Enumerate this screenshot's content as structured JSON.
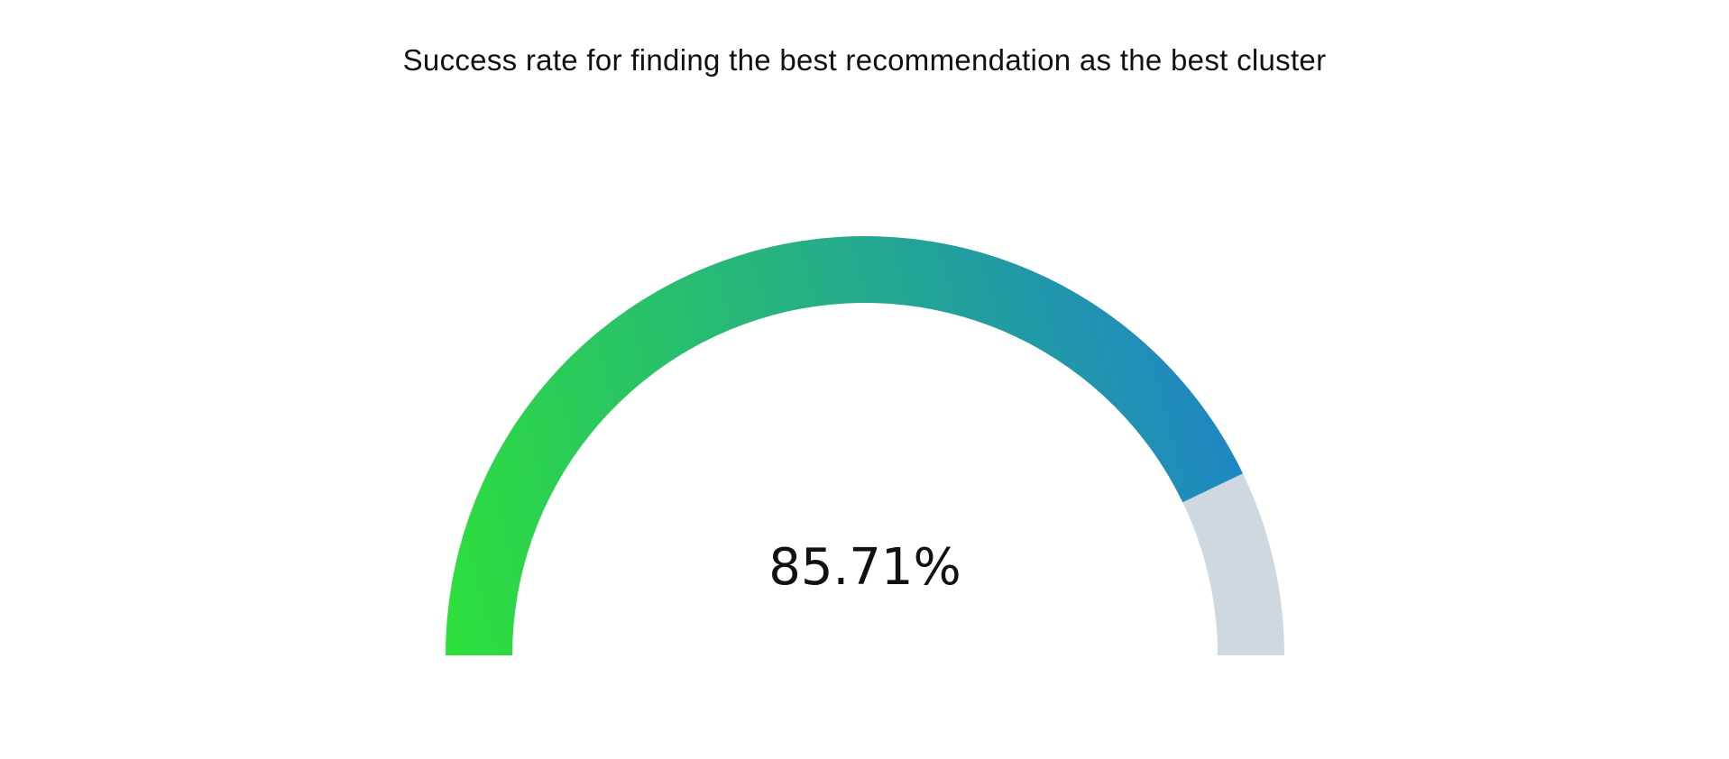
{
  "chart_data": {
    "type": "gauge",
    "title": "Success rate for finding the best recommendation as the best cluster",
    "value": 85.71,
    "min": 0,
    "max": 100,
    "value_label": "85.71%",
    "colors": {
      "gradient_start": "#2ee03a",
      "gradient_end": "#1e86c4",
      "track": "#cfd8df",
      "text": "#111111"
    }
  }
}
